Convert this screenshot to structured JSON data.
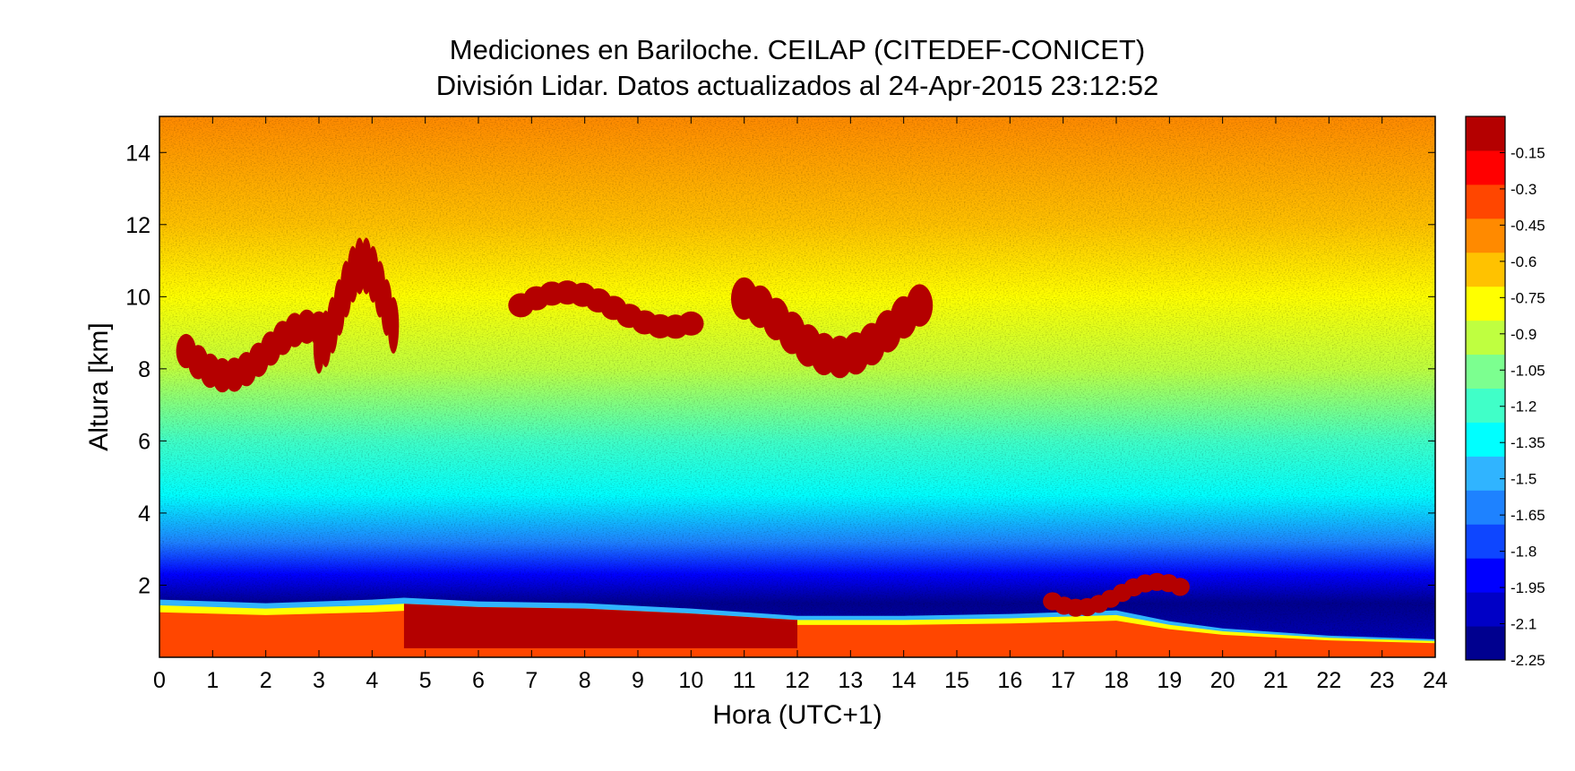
{
  "chart_data": {
    "type": "heatmap",
    "title": "Mediciones en Bariloche. CEILAP (CITEDEF-CONICET)",
    "subtitle": "División Lidar. Datos actualizados al 24-Apr-2015 23:12:52",
    "xlabel": "Hora (UTC+1)",
    "ylabel": "Altura [km]",
    "xlim": [
      0,
      24
    ],
    "ylim": [
      0,
      15
    ],
    "x_ticks": [
      0,
      1,
      2,
      3,
      4,
      5,
      6,
      7,
      8,
      9,
      10,
      11,
      12,
      13,
      14,
      15,
      16,
      17,
      18,
      19,
      20,
      21,
      22,
      23,
      24
    ],
    "y_ticks": [
      2,
      4,
      6,
      8,
      10,
      12,
      14
    ],
    "grid": false,
    "colorbar": {
      "placement": "right",
      "range": [
        -2.25,
        0
      ],
      "ticks": [
        -0.15,
        -0.3,
        -0.45,
        -0.6,
        -0.75,
        -0.9,
        -1.05,
        -1.2,
        -1.35,
        -1.5,
        -1.65,
        -1.8,
        -1.95,
        -2.1,
        -2.25
      ],
      "tick_labels": [
        "-0.15",
        "-0.3",
        "-0.45",
        "-0.6",
        "-0.75",
        "-0.9",
        "-1.05",
        "-1.2",
        "-1.35",
        "-1.5",
        "-1.65",
        "-1.8",
        "-1.95",
        "-2.1",
        "-2.25"
      ],
      "colors": [
        "#00008f",
        "#0000c6",
        "#0000ff",
        "#0e46ff",
        "#1e82ff",
        "#30b4ff",
        "#00ffff",
        "#40ffc8",
        "#7cff90",
        "#bfff40",
        "#ffff00",
        "#ffc200",
        "#ff8a00",
        "#ff4600",
        "#ff0000",
        "#b40000"
      ]
    },
    "cloud_layers": [
      {
        "x": [
          0.5,
          3.0
        ],
        "y": [
          7.3,
          9.0
        ],
        "value": 0
      },
      {
        "x": [
          3.0,
          4.4
        ],
        "y": [
          7.8,
          10.6
        ],
        "value": 0
      },
      {
        "x": [
          6.8,
          10.0
        ],
        "y": [
          8.8,
          10.0
        ],
        "value": 0
      },
      {
        "x": [
          11.0,
          14.3
        ],
        "y": [
          7.7,
          9.8
        ],
        "value": 0
      },
      {
        "x": [
          16.8,
          19.2
        ],
        "y": [
          1.1,
          2.0
        ],
        "value": 0
      }
    ],
    "boundary_layer_top": {
      "x": [
        0,
        2,
        4,
        4.6,
        6,
        8,
        10,
        12,
        14,
        16,
        18,
        19,
        20,
        22,
        24
      ],
      "y": [
        1.6,
        1.5,
        1.6,
        1.65,
        1.55,
        1.5,
        1.35,
        1.15,
        1.15,
        1.2,
        1.3,
        1.0,
        0.8,
        0.6,
        0.5
      ]
    }
  }
}
